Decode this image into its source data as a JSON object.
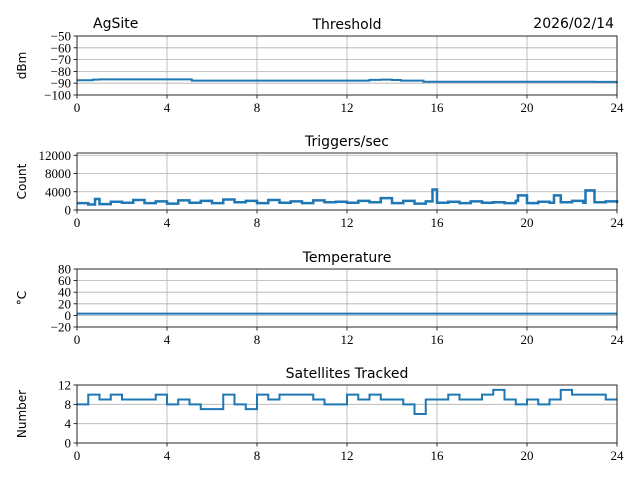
{
  "header": {
    "site": "AgSite",
    "date": "2026/02/14"
  },
  "chart_data": [
    {
      "type": "line",
      "title": "Threshold",
      "ylabel": "dBm",
      "xlabel": "",
      "xlim": [
        0,
        24
      ],
      "ylim": [
        -100,
        -50
      ],
      "xticks": [
        0,
        4,
        8,
        12,
        16,
        20,
        24
      ],
      "yticks": [
        -100,
        -90,
        -80,
        -70,
        -60,
        -50
      ],
      "grid": true,
      "color": "#1f77b4",
      "x": [
        0,
        0.7,
        1,
        5,
        5.1,
        12.4,
        13,
        13.5,
        14,
        14.4,
        15.4,
        16,
        20,
        23,
        24
      ],
      "y": [
        -87.5,
        -87,
        -86.8,
        -86.8,
        -87.8,
        -87.8,
        -87.2,
        -87,
        -87.3,
        -87.8,
        -88.8,
        -88.8,
        -88.8,
        -88.9,
        -88.8
      ]
    },
    {
      "type": "line",
      "title": "Triggers/sec",
      "ylabel": "Count",
      "xlabel": "",
      "xlim": [
        0,
        24
      ],
      "ylim": [
        0,
        12500
      ],
      "xticks": [
        0,
        4,
        8,
        12,
        16,
        20,
        24
      ],
      "yticks": [
        0,
        4000,
        8000,
        12000
      ],
      "grid": true,
      "color": "#1f77b4",
      "x": [
        0,
        0.5,
        0.8,
        1,
        1.5,
        2,
        2.5,
        3,
        3.5,
        4,
        4.5,
        5,
        5.5,
        6,
        6.5,
        7,
        7.5,
        8,
        8.5,
        9,
        9.5,
        10,
        10.5,
        11,
        11.5,
        12,
        12.5,
        13,
        13.5,
        14,
        14.5,
        15,
        15.5,
        15.8,
        16,
        16.5,
        17,
        17.5,
        18,
        18.5,
        19,
        19.5,
        19.6,
        20,
        20.5,
        21,
        21.2,
        21.5,
        22,
        22.5,
        22.6,
        23,
        23.5,
        24
      ],
      "y": [
        1500,
        1200,
        2400,
        1300,
        1800,
        1600,
        2200,
        1500,
        1900,
        1400,
        2100,
        1600,
        2000,
        1500,
        2300,
        1700,
        2000,
        1500,
        2200,
        1600,
        1900,
        1500,
        2100,
        1700,
        1800,
        1600,
        2000,
        1700,
        2600,
        1500,
        2000,
        1400,
        1900,
        4500,
        1600,
        1800,
        1500,
        1900,
        1600,
        1700,
        1500,
        2000,
        3200,
        1500,
        1800,
        1600,
        3200,
        1700,
        2000,
        1600,
        4300,
        1700,
        1900,
        1500
      ]
    },
    {
      "type": "line",
      "title": "Temperature",
      "ylabel": "°C",
      "xlabel": "",
      "xlim": [
        0,
        24
      ],
      "ylim": [
        -20,
        80
      ],
      "xticks": [
        0,
        4,
        8,
        12,
        16,
        20,
        24
      ],
      "yticks": [
        -20,
        0,
        20,
        40,
        60,
        80
      ],
      "grid": true,
      "color": "#1f77b4",
      "x": [
        0,
        24
      ],
      "y": [
        3,
        3
      ]
    },
    {
      "type": "line",
      "title": "Satellites Tracked",
      "ylabel": "Number",
      "xlabel": "",
      "xlim": [
        0,
        24
      ],
      "ylim": [
        0,
        12
      ],
      "xticks": [
        0,
        4,
        8,
        12,
        16,
        20,
        24
      ],
      "yticks": [
        0,
        4,
        8,
        12
      ],
      "grid": true,
      "color": "#1f77b4",
      "x": [
        0,
        0.5,
        1,
        1.5,
        2,
        2.5,
        3,
        3.5,
        4,
        4.5,
        5,
        5.5,
        6,
        6.5,
        7,
        7.5,
        8,
        8.5,
        9,
        9.5,
        10,
        10.5,
        11,
        11.5,
        12,
        12.5,
        13,
        13.5,
        14,
        14.5,
        15,
        15.5,
        16,
        16.5,
        17,
        17.5,
        18,
        18.5,
        19,
        19.5,
        20,
        20.5,
        21,
        21.5,
        22,
        22.5,
        23,
        23.5,
        24
      ],
      "y": [
        8,
        10,
        9,
        10,
        9,
        9,
        9,
        10,
        8,
        9,
        8,
        7,
        7,
        10,
        8,
        7,
        10,
        9,
        10,
        10,
        10,
        9,
        8,
        8,
        10,
        9,
        10,
        9,
        9,
        8,
        6,
        9,
        9,
        10,
        9,
        9,
        10,
        11,
        9,
        8,
        9,
        8,
        9,
        11,
        10,
        10,
        10,
        9,
        9
      ]
    }
  ]
}
